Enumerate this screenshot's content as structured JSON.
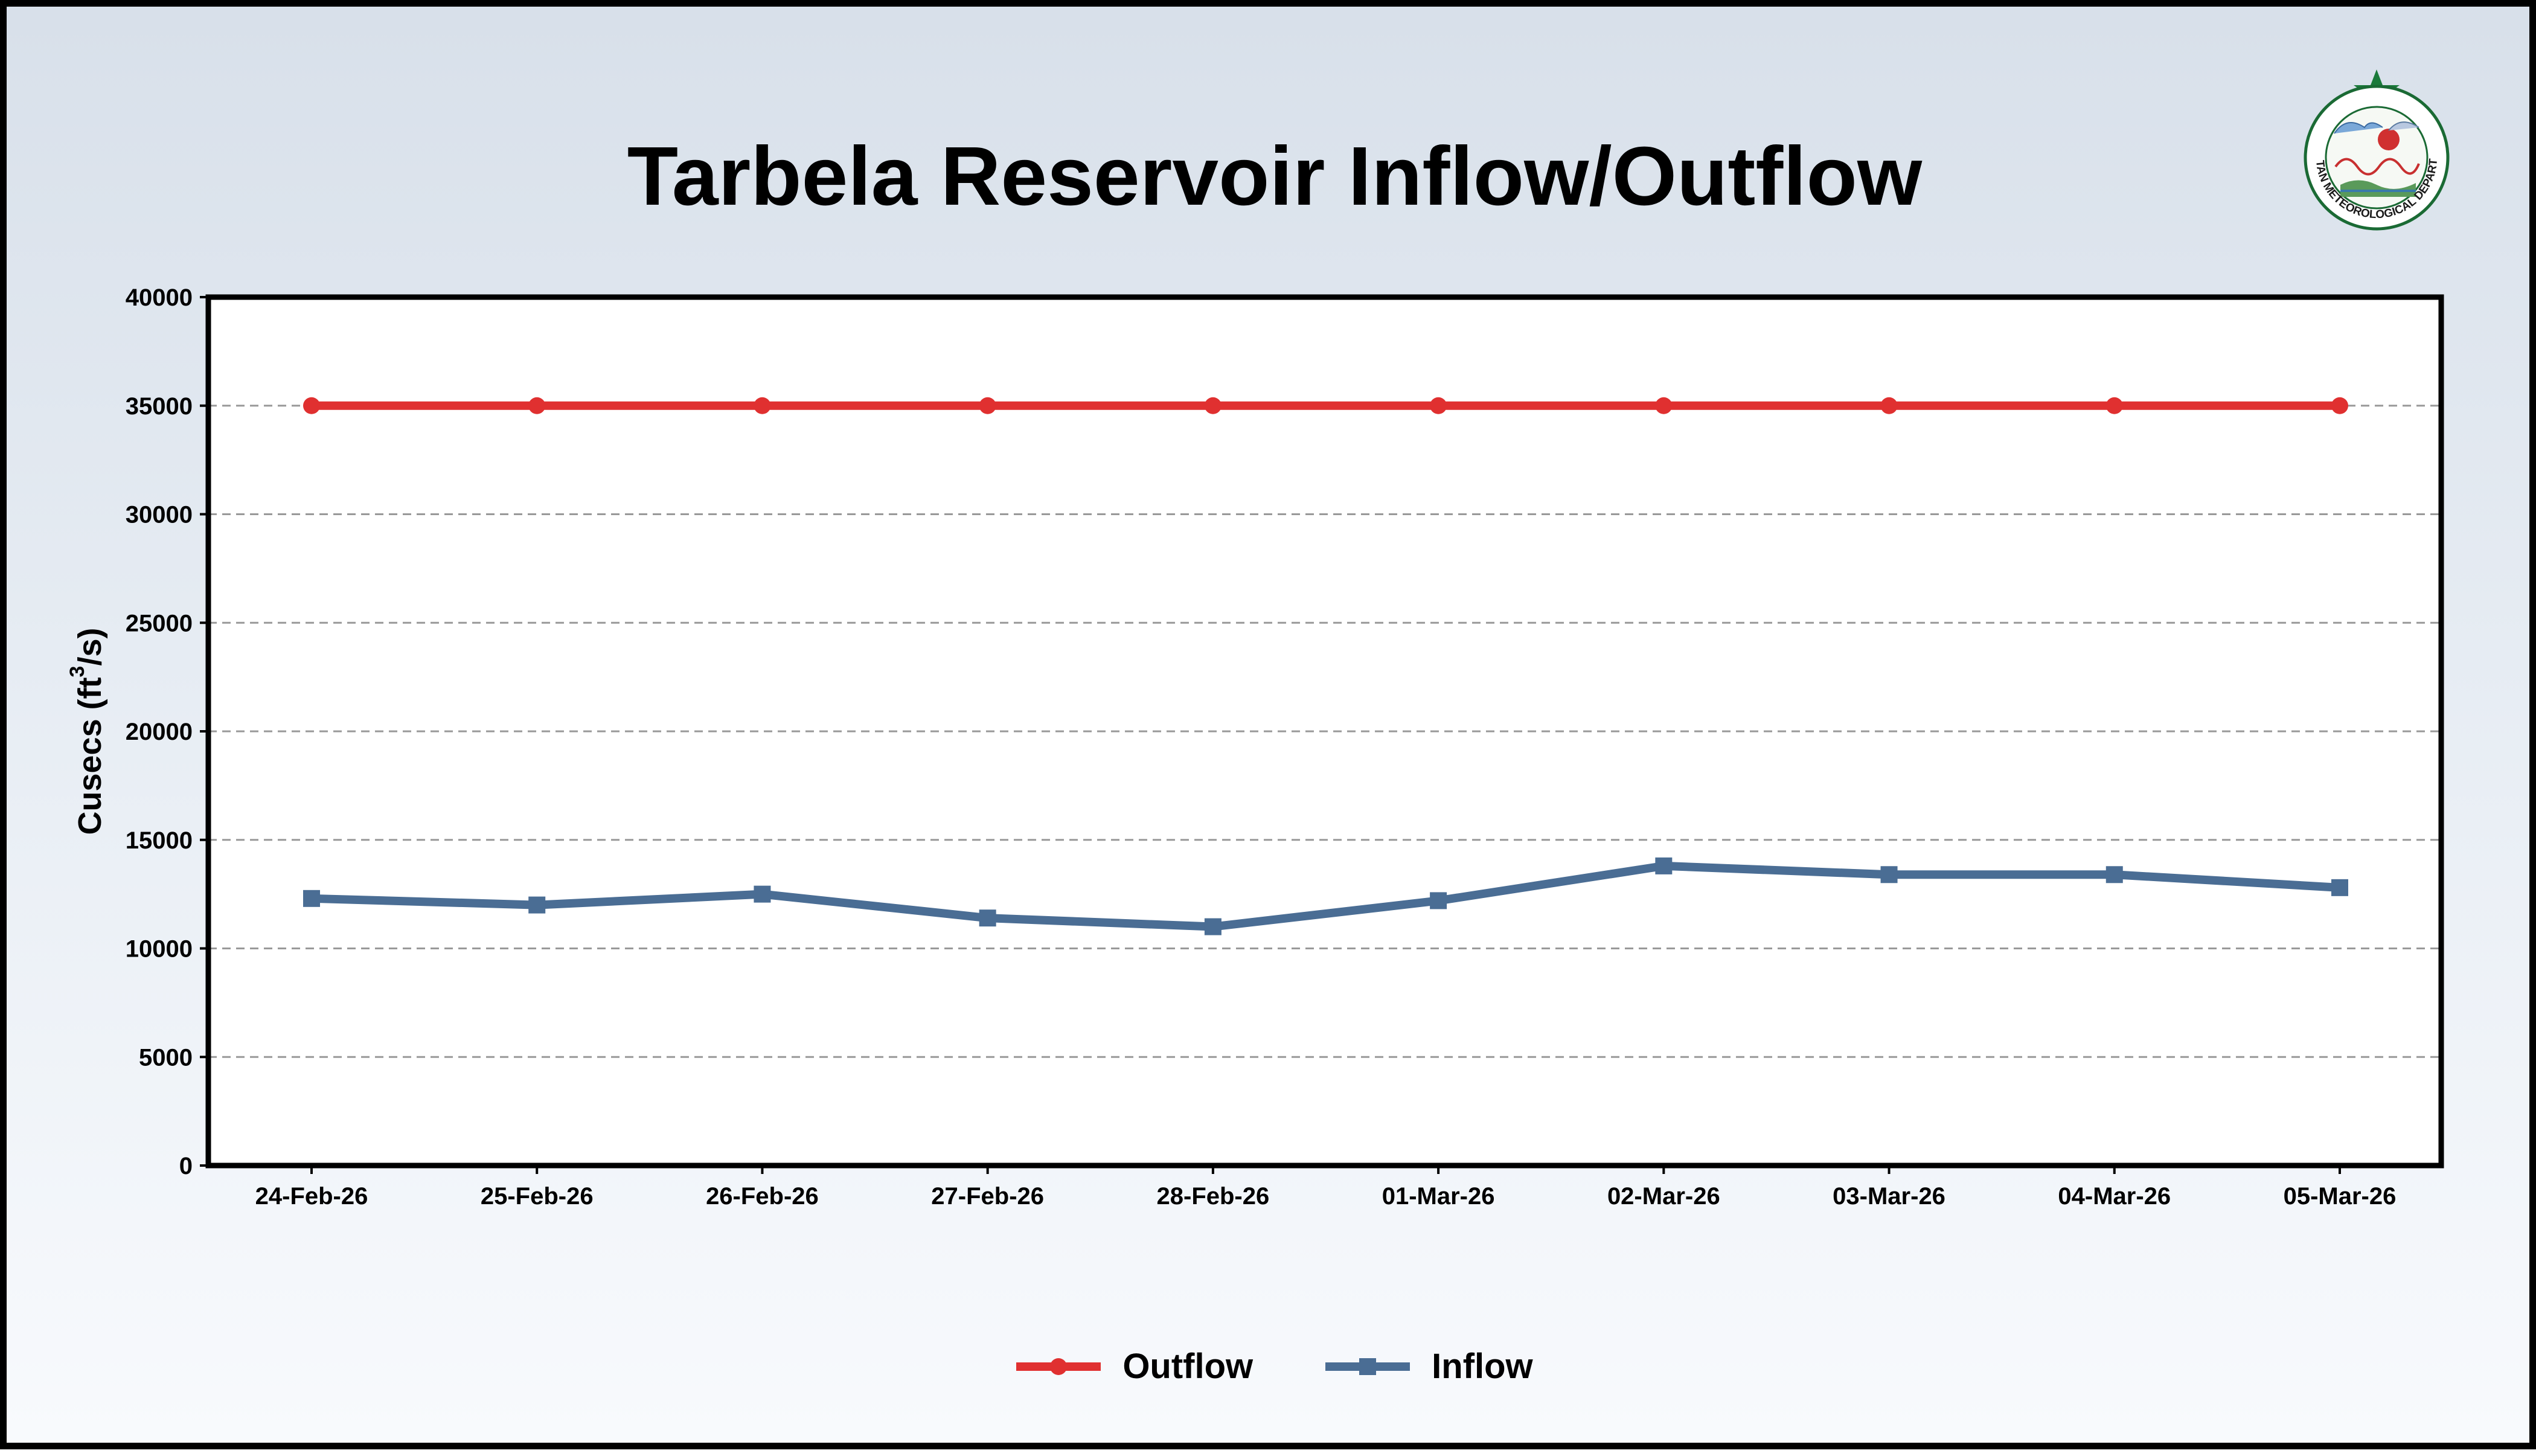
{
  "chart_data": {
    "type": "line",
    "title": "Tarbela Reservoir Inflow/Outflow",
    "ylabel": "Cusecs (ft",
    "ylabel_sup": "3",
    "ylabel_end": "/s)",
    "xlabel": "",
    "categories": [
      "24-Feb-26",
      "25-Feb-26",
      "26-Feb-26",
      "27-Feb-26",
      "28-Feb-26",
      "01-Mar-26",
      "02-Mar-26",
      "03-Mar-26",
      "04-Mar-26",
      "05-Mar-26"
    ],
    "ylim": [
      0,
      40000
    ],
    "yticks": [
      0,
      5000,
      10000,
      15000,
      20000,
      25000,
      30000,
      35000,
      40000
    ],
    "grid": true,
    "legend_position": "bottom-center",
    "series": [
      {
        "name": "Outflow",
        "color": "#e03030",
        "marker": "circle",
        "values": [
          35000,
          35000,
          35000,
          35000,
          35000,
          35000,
          35000,
          35000,
          35000,
          35000
        ]
      },
      {
        "name": "Inflow",
        "color": "#4a6d94",
        "marker": "square",
        "values": [
          12300,
          12000,
          12500,
          11400,
          11000,
          12200,
          13800,
          13400,
          13400,
          12800
        ]
      }
    ]
  },
  "logo": {
    "name": "pmd-logo-icon",
    "text": "PAKISTAN METEOROLOGICAL DEPARTMENT"
  }
}
